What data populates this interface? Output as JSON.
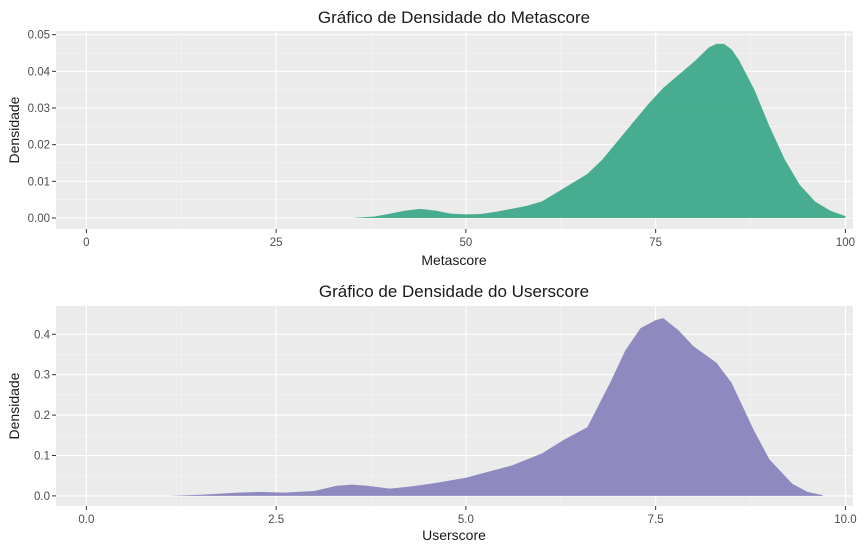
{
  "chart_data": [
    {
      "type": "area",
      "title": "Gráfico de Densidade do Metascore",
      "xlabel": "Metascore",
      "ylabel": "Densidade",
      "xlim": [
        -4,
        101
      ],
      "ylim": [
        -0.003,
        0.051
      ],
      "x_ticks": [
        0,
        25,
        50,
        75,
        100
      ],
      "x_tick_labels": [
        "0",
        "25",
        "50",
        "75",
        "100"
      ],
      "y_ticks": [
        0,
        0.01,
        0.02,
        0.03,
        0.04,
        0.05
      ],
      "y_tick_labels": [
        "0.00",
        "0.01",
        "0.02",
        "0.03",
        "0.04",
        "0.05"
      ],
      "grid": true,
      "fill_color": "#3aa788",
      "series": [
        {
          "x": [
            35,
            38,
            40,
            42,
            44,
            46,
            48,
            50,
            52,
            54,
            56,
            58,
            60,
            62,
            64,
            66,
            68,
            70,
            72,
            74,
            76,
            78,
            80,
            81,
            82,
            83,
            84,
            85,
            86,
            88,
            90,
            92,
            94,
            96,
            98,
            100
          ],
          "y": [
            0,
            0.0004,
            0.0012,
            0.002,
            0.0025,
            0.002,
            0.0012,
            0.001,
            0.0011,
            0.0017,
            0.0025,
            0.0033,
            0.0045,
            0.007,
            0.0095,
            0.012,
            0.016,
            0.021,
            0.026,
            0.031,
            0.0355,
            0.039,
            0.0425,
            0.0445,
            0.0465,
            0.0475,
            0.0475,
            0.046,
            0.043,
            0.035,
            0.025,
            0.016,
            0.009,
            0.0045,
            0.002,
            0.0005
          ]
        }
      ]
    },
    {
      "type": "area",
      "title": "Gráfico de Densidade do Userscore",
      "xlabel": "Userscore",
      "ylabel": "Densidade",
      "xlim": [
        -0.4,
        10.1
      ],
      "ylim": [
        -0.025,
        0.47
      ],
      "x_ticks": [
        0,
        2.5,
        5,
        7.5,
        10
      ],
      "x_tick_labels": [
        "0.0",
        "2.5",
        "5.0",
        "7.5",
        "10.0"
      ],
      "y_ticks": [
        0,
        0.1,
        0.2,
        0.3,
        0.4
      ],
      "y_tick_labels": [
        "0.0",
        "0.1",
        "0.2",
        "0.3",
        "0.4"
      ],
      "grid": true,
      "fill_color": "#8681bb",
      "series": [
        {
          "x": [
            1.1,
            1.5,
            2,
            2.3,
            2.6,
            3,
            3.3,
            3.5,
            3.7,
            4,
            4.3,
            4.6,
            5,
            5.3,
            5.6,
            6,
            6.3,
            6.6,
            6.9,
            7.1,
            7.3,
            7.5,
            7.6,
            7.8,
            8,
            8.3,
            8.5,
            8.8,
            9,
            9.3,
            9.5,
            9.7
          ],
          "y": [
            0,
            0.003,
            0.008,
            0.01,
            0.008,
            0.012,
            0.025,
            0.028,
            0.025,
            0.018,
            0.024,
            0.032,
            0.045,
            0.06,
            0.075,
            0.105,
            0.14,
            0.17,
            0.28,
            0.36,
            0.415,
            0.435,
            0.44,
            0.41,
            0.37,
            0.33,
            0.28,
            0.16,
            0.09,
            0.03,
            0.01,
            0.002
          ]
        }
      ]
    }
  ]
}
